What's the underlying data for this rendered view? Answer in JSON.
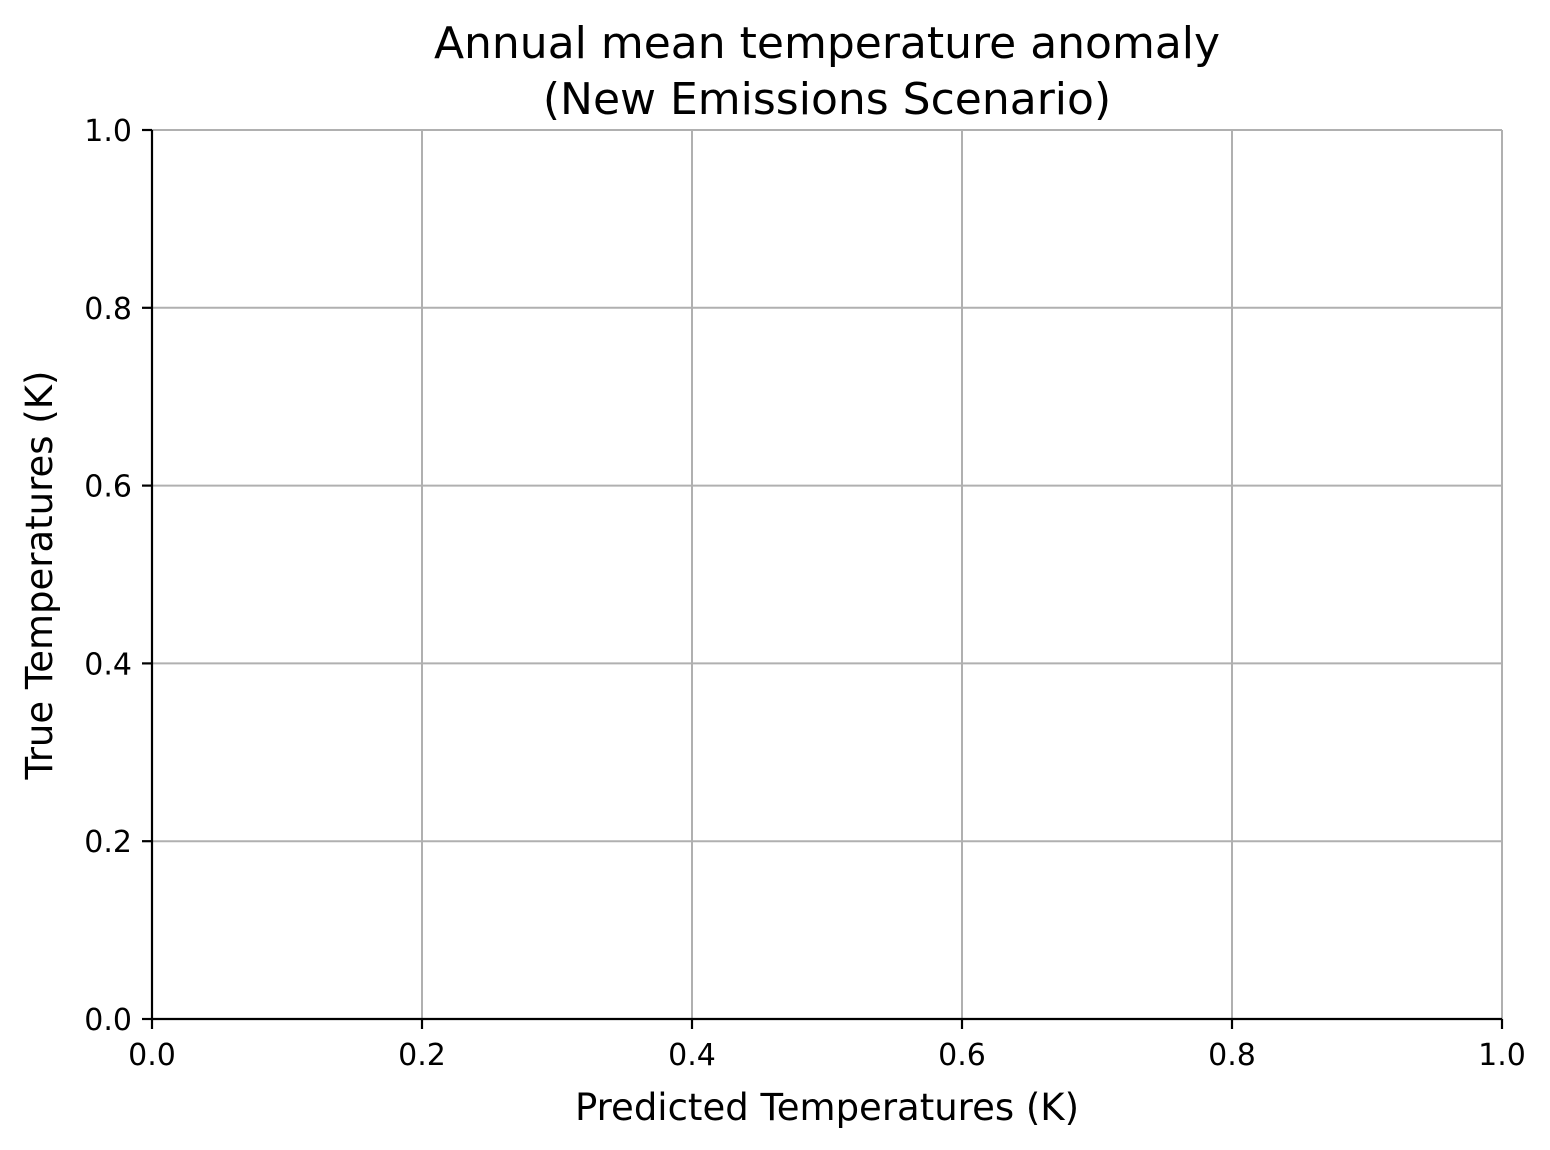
{
  "chart_data": {
    "type": "scatter",
    "title_lines": [
      "Annual mean temperature anomaly",
      "(New Emissions Scenario)"
    ],
    "xlabel": "Predicted Temperatures (K)",
    "ylabel": "True Temperatures (K)",
    "xlim": [
      0.0,
      1.0
    ],
    "ylim": [
      0.0,
      1.0
    ],
    "xticks": [
      0.0,
      0.2,
      0.4,
      0.6,
      0.8,
      1.0
    ],
    "yticks": [
      0.0,
      0.2,
      0.4,
      0.6,
      0.8,
      1.0
    ],
    "xtick_labels": [
      "0.0",
      "0.2",
      "0.4",
      "0.6",
      "0.8",
      "1.0"
    ],
    "ytick_labels": [
      "0.0",
      "0.2",
      "0.4",
      "0.6",
      "0.8",
      "1.0"
    ],
    "grid": true,
    "series": [],
    "colors": {
      "grid": "#b0b0b0",
      "axis": "#000000"
    }
  }
}
